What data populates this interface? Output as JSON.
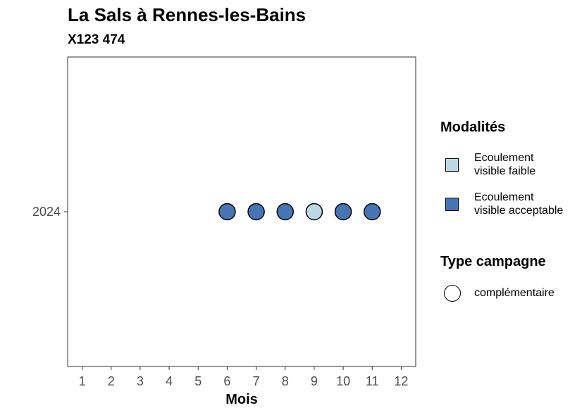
{
  "chart_data": {
    "type": "scatter",
    "title": "La Sals à Rennes-les-Bains",
    "subtitle": "X123 474",
    "xlabel": "Mois",
    "ylabel": "",
    "x_ticks": [
      "1",
      "2",
      "3",
      "4",
      "5",
      "6",
      "7",
      "8",
      "9",
      "10",
      "11",
      "12"
    ],
    "xlim": [
      0.5,
      12.5
    ],
    "y_categories": [
      "2024"
    ],
    "grid": false,
    "legend_position": "right",
    "points": [
      {
        "month": 6,
        "year": "2024",
        "modalite": "Ecoulement visible acceptable",
        "campagne": "complémentaire"
      },
      {
        "month": 7,
        "year": "2024",
        "modalite": "Ecoulement visible acceptable",
        "campagne": "complémentaire"
      },
      {
        "month": 8,
        "year": "2024",
        "modalite": "Ecoulement visible acceptable",
        "campagne": "complémentaire"
      },
      {
        "month": 9,
        "year": "2024",
        "modalite": "Ecoulement visible faible",
        "campagne": "complémentaire"
      },
      {
        "month": 10,
        "year": "2024",
        "modalite": "Ecoulement visible acceptable",
        "campagne": "complémentaire"
      },
      {
        "month": 11,
        "year": "2024",
        "modalite": "Ecoulement visible acceptable",
        "campagne": "complémentaire"
      }
    ],
    "legend_modalites": {
      "title": "Modalités",
      "items": [
        {
          "label": "Ecoulement visible faible",
          "color": "#bdd7e7"
        },
        {
          "label": "Ecoulement visible acceptable",
          "color": "#4575b4"
        }
      ]
    },
    "legend_campagne": {
      "title": "Type campagne",
      "items": [
        {
          "label": "complémentaire",
          "shape": "circle"
        }
      ]
    }
  }
}
